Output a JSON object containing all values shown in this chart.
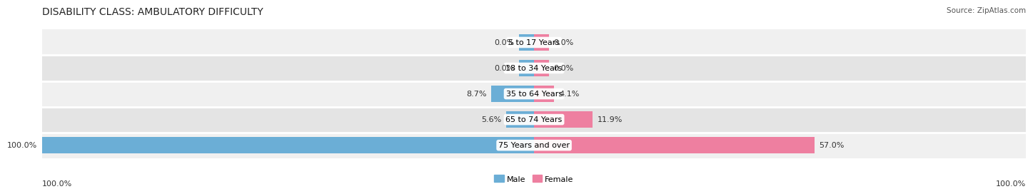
{
  "title": "DISABILITY CLASS: AMBULATORY DIFFICULTY",
  "source": "Source: ZipAtlas.com",
  "categories": [
    "5 to 17 Years",
    "18 to 34 Years",
    "35 to 64 Years",
    "65 to 74 Years",
    "75 Years and over"
  ],
  "male_values": [
    0.0,
    0.0,
    8.7,
    5.6,
    100.0
  ],
  "female_values": [
    0.0,
    0.0,
    4.1,
    11.9,
    57.0
  ],
  "male_label_values": [
    "0.0%",
    "0.0%",
    "8.7%",
    "5.6%",
    "100.0%"
  ],
  "female_label_values": [
    "0.0%",
    "0.0%",
    "4.1%",
    "11.9%",
    "57.0%"
  ],
  "male_color": "#6baed6",
  "female_color": "#ee7fa0",
  "row_colors": [
    "#f0f0f0",
    "#e4e4e4"
  ],
  "max_value": 100.0,
  "min_bar_display": 3.0,
  "title_fontsize": 10,
  "label_fontsize": 8,
  "cat_fontsize": 8,
  "bar_height": 0.62,
  "figsize": [
    14.06,
    2.69
  ],
  "dpi": 100
}
